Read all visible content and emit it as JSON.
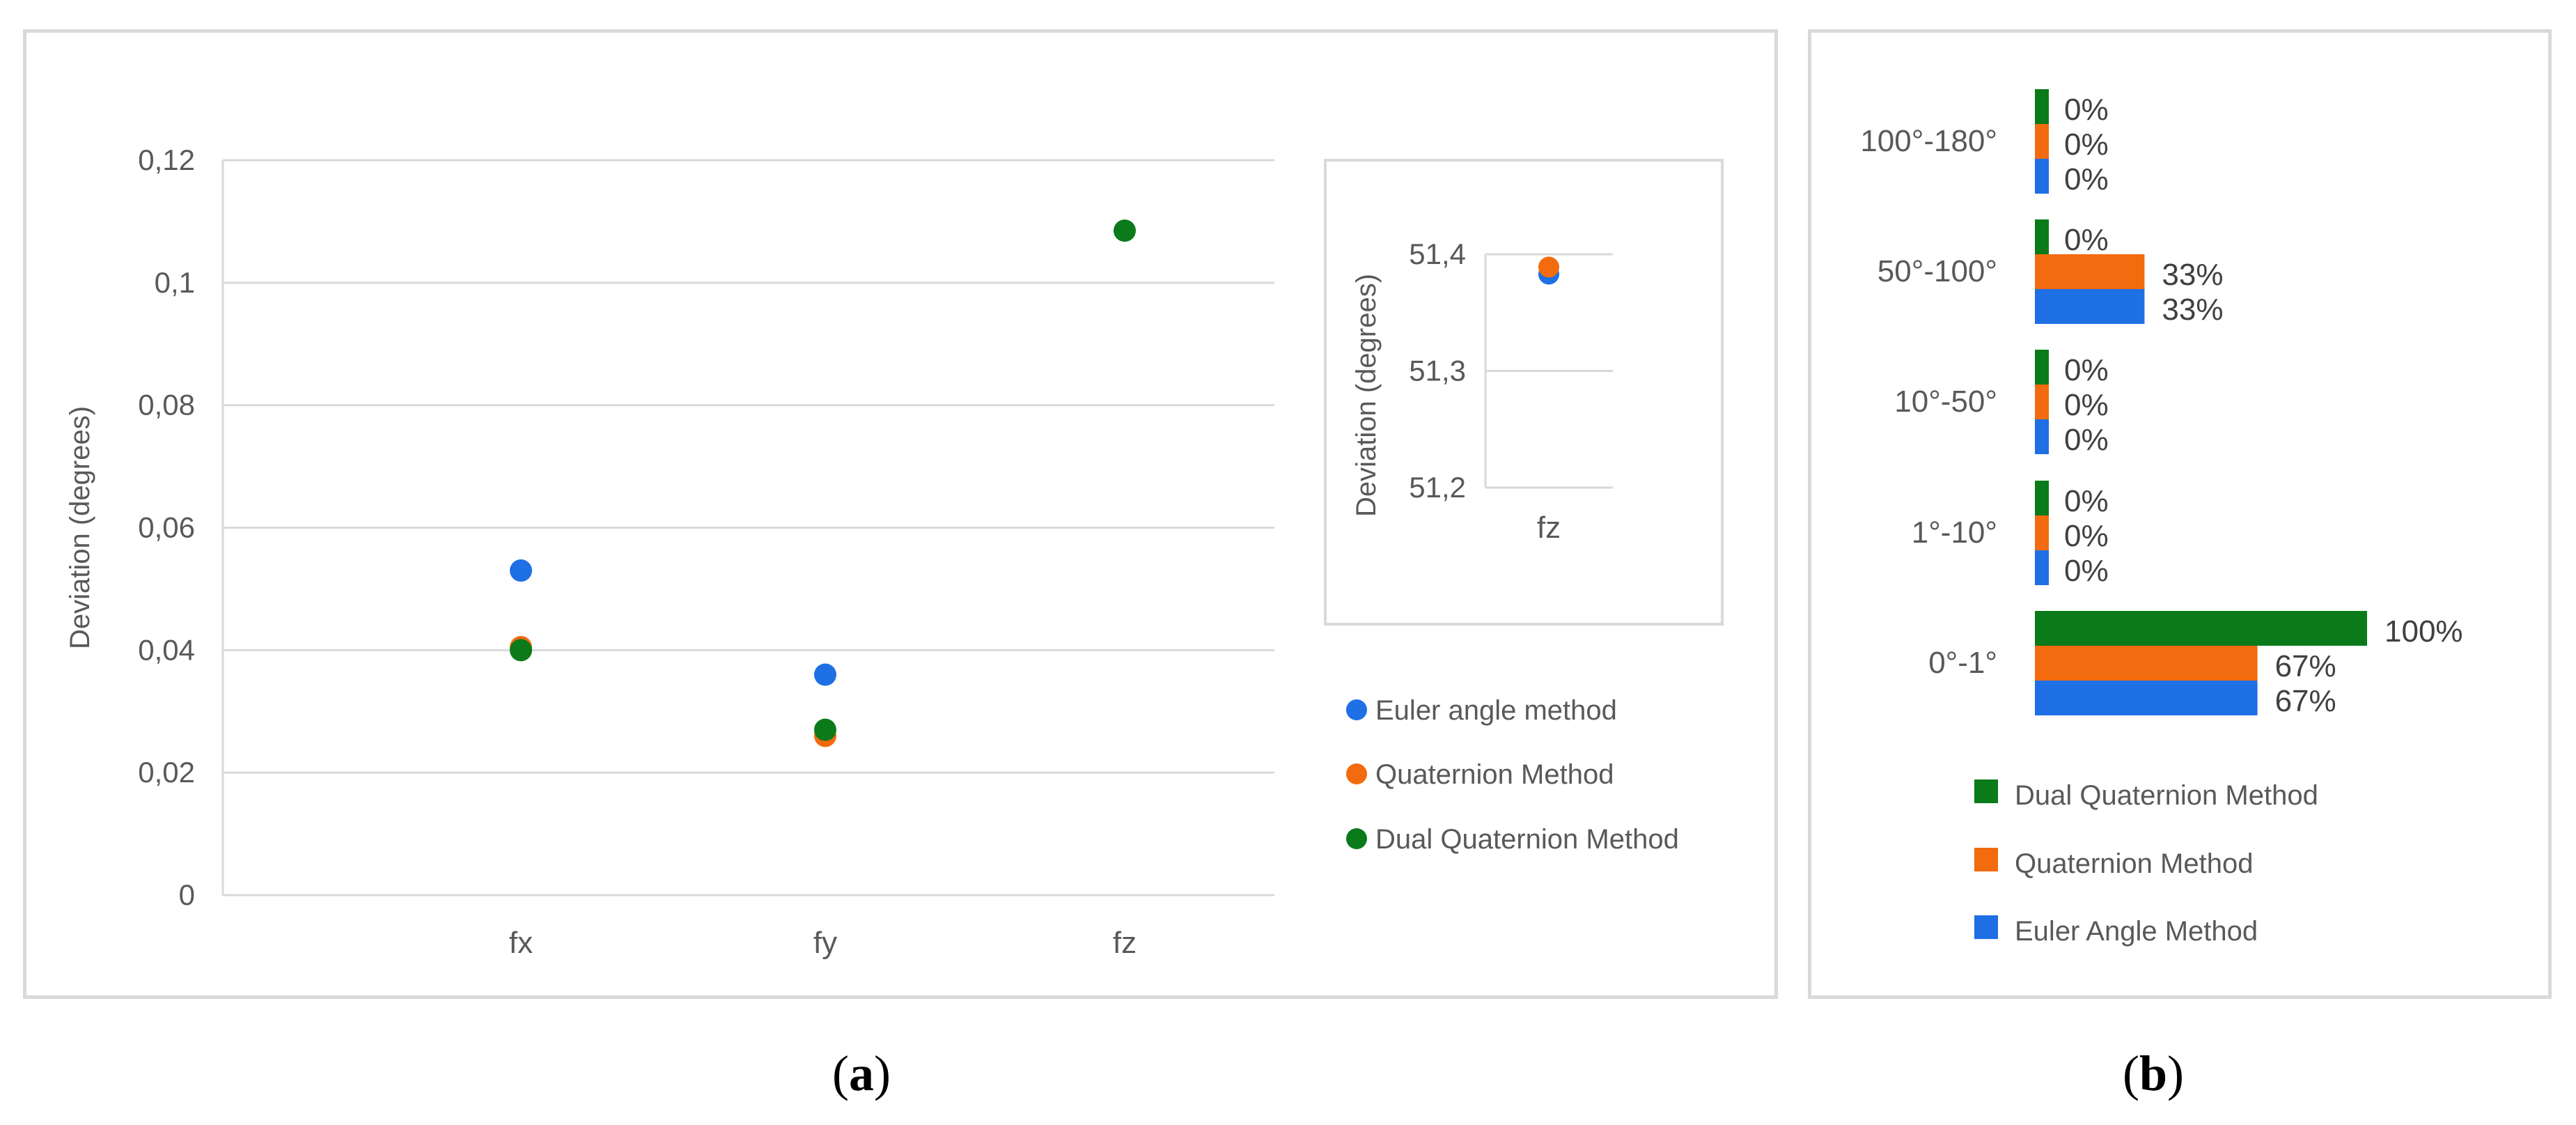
{
  "chart_data": [
    {
      "type": "scatter",
      "panel": "a",
      "title": "",
      "xlabel": "",
      "ylabel": "Deviation (degrees)",
      "categories": [
        "fx",
        "fy",
        "fz"
      ],
      "ylim": [
        0,
        0.12
      ],
      "yticks": [
        "0",
        "0,02",
        "0,04",
        "0,06",
        "0,08",
        "0,1",
        "0,12"
      ],
      "ytick_values": [
        0,
        0.02,
        0.04,
        0.06,
        0.08,
        0.1,
        0.12
      ],
      "grid": true,
      "legend_position": "right",
      "series": [
        {
          "name": "Euler angle method",
          "color": "#1f6fe5",
          "values": [
            0.053,
            0.036,
            null
          ]
        },
        {
          "name": "Quaternion Method",
          "color": "#f26b0f",
          "values": [
            0.0405,
            0.026,
            null
          ]
        },
        {
          "name": "Dual Quaternion Method",
          "color": "#0b7a1a",
          "values": [
            0.04,
            0.027,
            0.1085
          ]
        }
      ],
      "inset": {
        "type": "scatter",
        "ylabel": "Deviation (degrees)",
        "categories": [
          "fz"
        ],
        "ylim": [
          51.2,
          51.4
        ],
        "yticks": [
          "51,2",
          "51,3",
          "51,4"
        ],
        "ytick_values": [
          51.2,
          51.3,
          51.4
        ],
        "series": [
          {
            "name": "Euler angle method",
            "color": "#1f6fe5",
            "values": [
              51.383
            ]
          },
          {
            "name": "Quaternion Method",
            "color": "#f26b0f",
            "values": [
              51.389
            ]
          }
        ]
      }
    },
    {
      "type": "bar",
      "orientation": "horizontal",
      "panel": "b",
      "title": "",
      "categories": [
        "100°-180°",
        "50°-100°",
        "10°-50°",
        "1°-10°",
        "0°-1°"
      ],
      "xlim": [
        0,
        100
      ],
      "legend_position": "bottom",
      "series": [
        {
          "name": "Dual Quaternion Method",
          "color": "#0b7a1a",
          "values": [
            0,
            0,
            0,
            0,
            100
          ],
          "labels": [
            "0%",
            "0%",
            "0%",
            "0%",
            "100%"
          ]
        },
        {
          "name": "Quaternion Method",
          "color": "#f26b0f",
          "values": [
            0,
            33,
            0,
            0,
            67
          ],
          "labels": [
            "0%",
            "33%",
            "0%",
            "0%",
            "67%"
          ]
        },
        {
          "name": "Euler Angle Method",
          "color": "#1f6fe5",
          "values": [
            0,
            33,
            0,
            0,
            67
          ],
          "labels": [
            "0%",
            "33%",
            "0%",
            "0%",
            "67%"
          ]
        }
      ]
    }
  ],
  "captions": {
    "a": "(a)",
    "b": "(b)"
  }
}
